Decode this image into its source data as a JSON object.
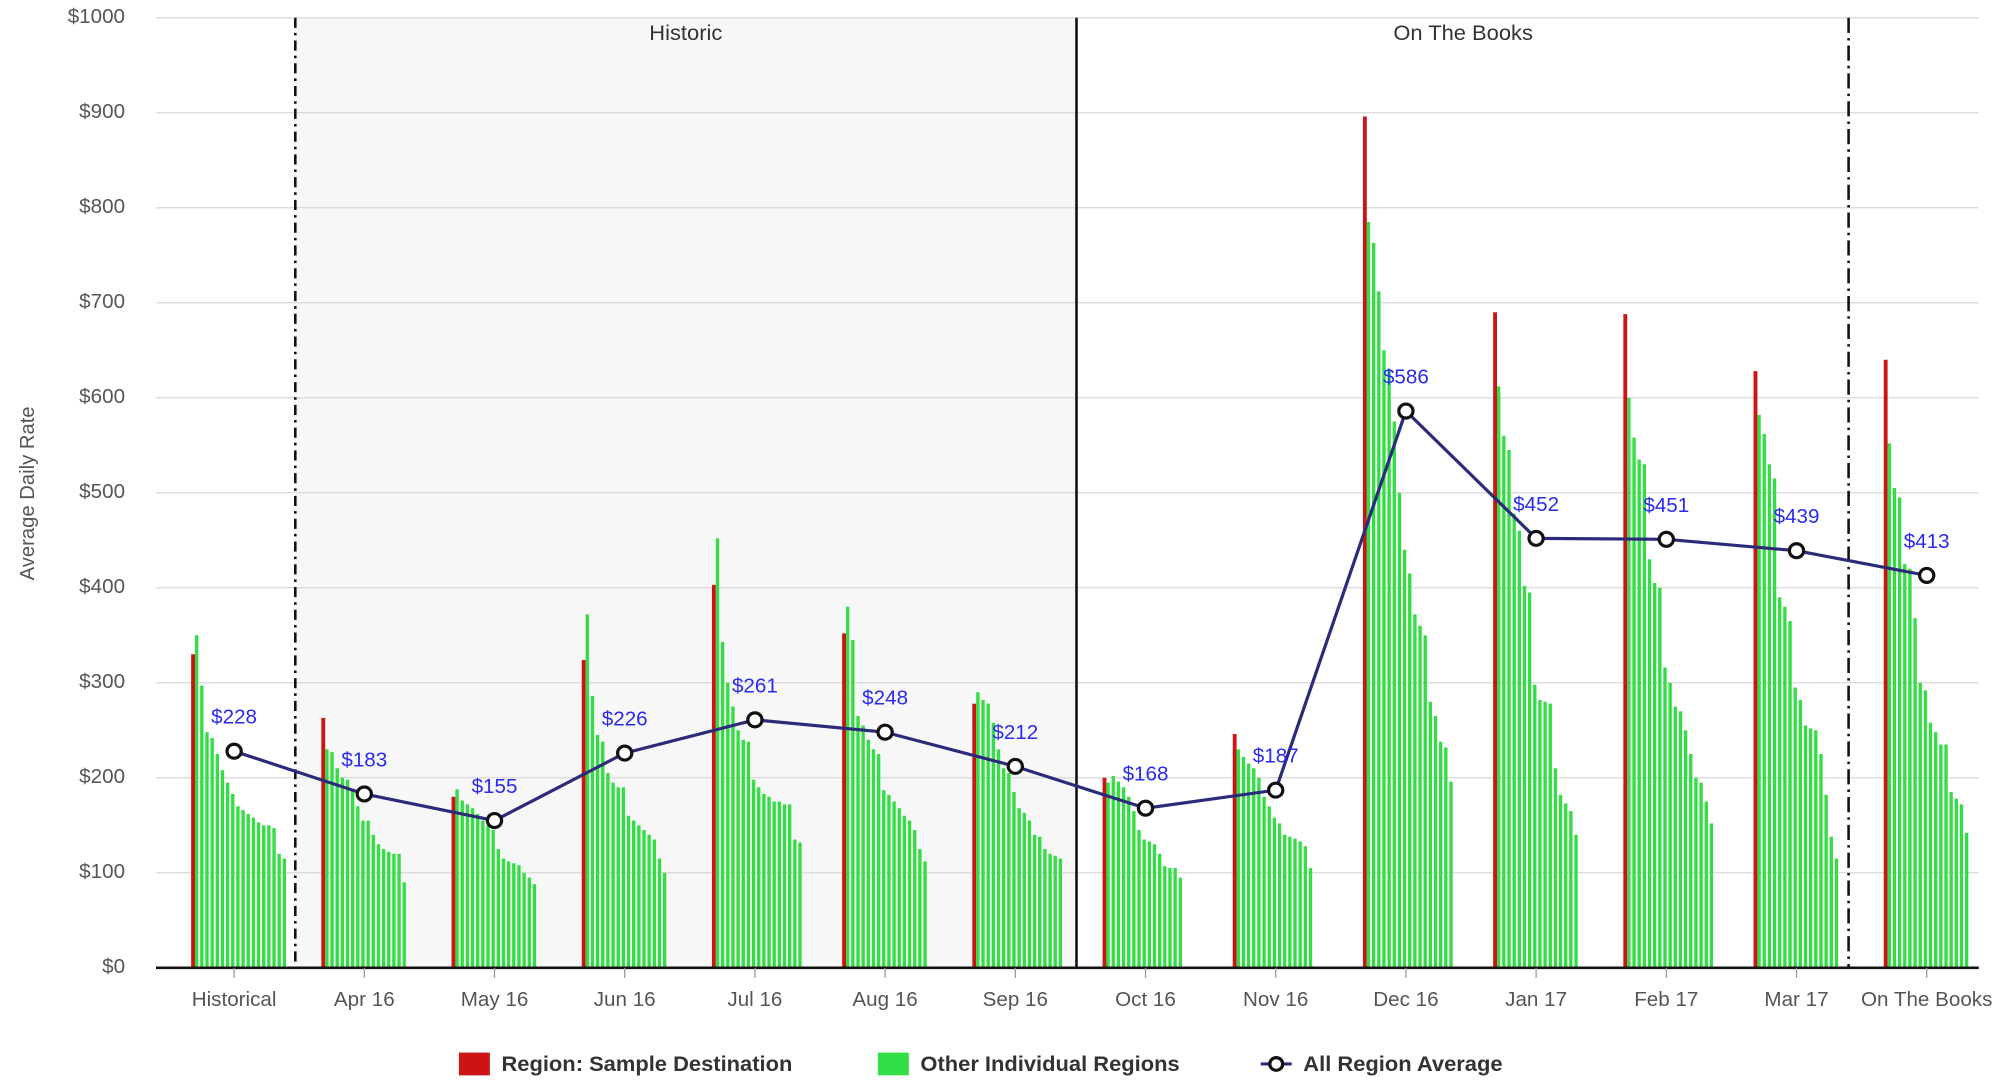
{
  "chart_data": {
    "type": "bar-line",
    "ylabel": "Average Daily Rate",
    "categories": [
      "Historical",
      "Apr 16",
      "May 16",
      "Jun 16",
      "Jul 16",
      "Aug 16",
      "Sep 16",
      "Oct 16",
      "Nov 16",
      "Dec 16",
      "Jan 17",
      "Feb 17",
      "Mar 17",
      "On The Books"
    ],
    "annotations": [
      {
        "text": "Historic"
      },
      {
        "text": "On The Books"
      }
    ],
    "ylim": [
      0,
      1000
    ],
    "yticks": [
      {
        "value": 0,
        "label": "$0"
      },
      {
        "value": 100,
        "label": "$100"
      },
      {
        "value": 200,
        "label": "$200"
      },
      {
        "value": 300,
        "label": "$300"
      },
      {
        "value": 400,
        "label": "$400"
      },
      {
        "value": 500,
        "label": "$500"
      },
      {
        "value": 600,
        "label": "$600"
      },
      {
        "value": 700,
        "label": "$700"
      },
      {
        "value": 800,
        "label": "$800"
      },
      {
        "value": 900,
        "label": "$900"
      },
      {
        "value": 1000,
        "label": "$1000"
      }
    ],
    "grid": true,
    "legend": "bottom",
    "series": [
      {
        "name": "Region: Sample Destination",
        "color": "#cc1414",
        "kind": "bar",
        "values": [
          330,
          263,
          180,
          324,
          403,
          352,
          278,
          200,
          246,
          896,
          690,
          688,
          628,
          640
        ]
      },
      {
        "name": "Other Individual Regions",
        "color": "#33dd44",
        "kind": "bar-group",
        "values": [
          [
            350,
            297,
            248,
            242,
            225,
            208,
            195,
            183,
            170,
            166,
            162,
            158,
            153,
            150,
            150,
            147,
            120,
            115
          ],
          [
            230,
            227,
            210,
            200,
            198,
            187,
            170,
            155,
            155,
            140,
            130,
            125,
            122,
            120,
            120,
            90
          ],
          [
            188,
            176,
            172,
            168,
            162,
            155,
            150,
            145,
            125,
            115,
            112,
            110,
            108,
            100,
            95,
            88
          ],
          [
            372,
            286,
            245,
            238,
            205,
            195,
            190,
            190,
            160,
            155,
            150,
            145,
            140,
            135,
            115,
            100
          ],
          [
            452,
            343,
            300,
            275,
            250,
            240,
            238,
            198,
            190,
            183,
            180,
            175,
            175,
            172,
            172,
            135,
            132
          ],
          [
            380,
            345,
            265,
            255,
            240,
            230,
            225,
            187,
            182,
            175,
            168,
            160,
            155,
            145,
            125,
            112
          ],
          [
            290,
            282,
            278,
            258,
            230,
            210,
            205,
            185,
            168,
            163,
            155,
            140,
            138,
            125,
            120,
            118,
            115
          ],
          [
            195,
            202,
            196,
            190,
            180,
            165,
            145,
            135,
            133,
            130,
            120,
            107,
            105,
            105,
            95
          ],
          [
            230,
            222,
            215,
            210,
            200,
            180,
            170,
            158,
            152,
            140,
            138,
            136,
            133,
            128,
            105
          ],
          [
            785,
            763,
            712,
            650,
            630,
            575,
            500,
            440,
            415,
            372,
            360,
            350,
            280,
            265,
            238,
            232,
            196
          ],
          [
            612,
            560,
            545,
            478,
            460,
            402,
            395,
            298,
            282,
            280,
            278,
            210,
            182,
            173,
            165,
            140
          ],
          [
            600,
            558,
            535,
            530,
            430,
            405,
            400,
            316,
            300,
            275,
            270,
            250,
            225,
            200,
            195,
            175,
            152
          ],
          [
            582,
            562,
            530,
            515,
            390,
            380,
            365,
            295,
            282,
            255,
            252,
            250,
            225,
            182,
            138,
            115
          ],
          [
            552,
            505,
            495,
            425,
            420,
            368,
            300,
            292,
            258,
            248,
            235,
            235,
            185,
            178,
            172,
            142
          ]
        ]
      },
      {
        "name": "All Region Average",
        "color": "#2b2b7a",
        "kind": "line",
        "values": [
          228,
          183,
          155,
          226,
          261,
          248,
          212,
          168,
          187,
          586,
          452,
          451,
          439,
          413
        ],
        "value_labels": [
          "$228",
          "$183",
          "$155",
          "$226",
          "$261",
          "$248",
          "$212",
          "$168",
          "$187",
          "$586",
          "$452",
          "$451",
          "$439",
          "$413"
        ]
      }
    ]
  }
}
